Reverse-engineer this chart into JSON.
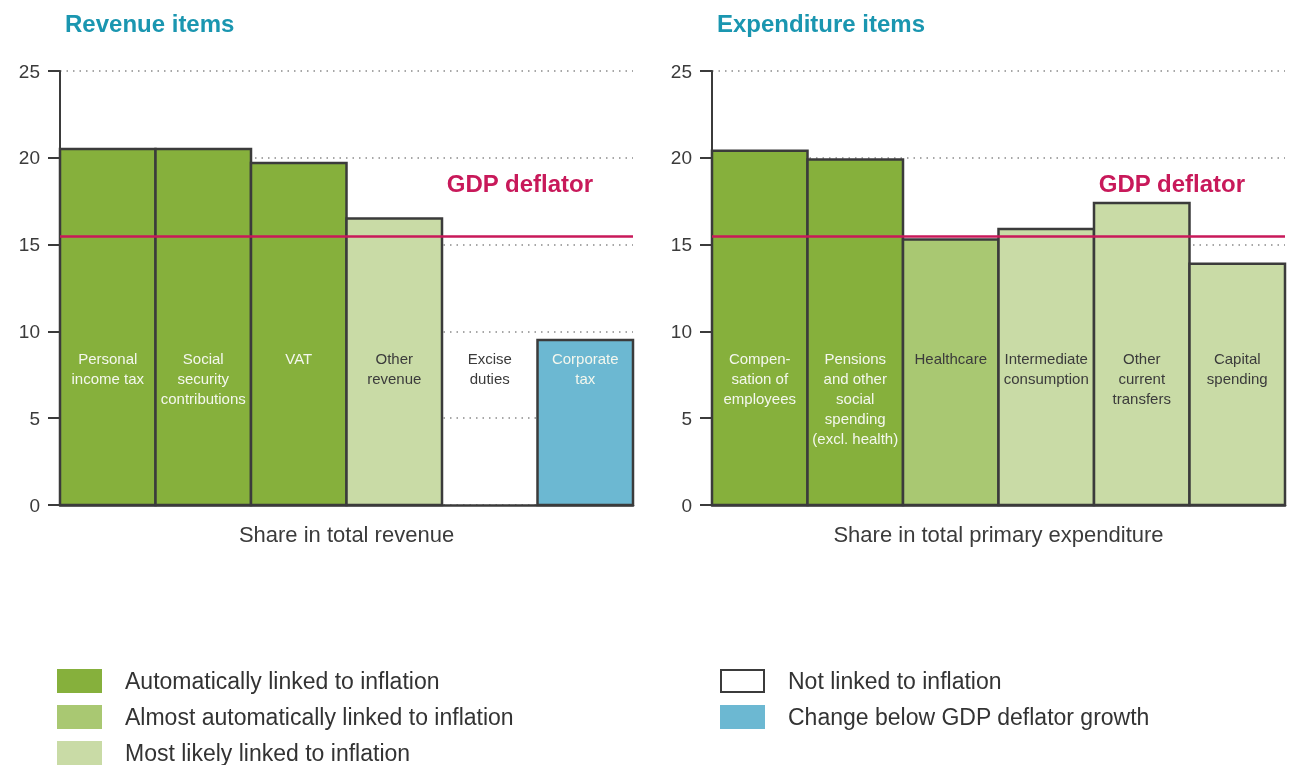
{
  "chart_data": [
    {
      "type": "bar",
      "title": "Revenue items",
      "xlabel": "Share in total revenue",
      "categories": [
        "Personal income tax",
        "Social security contributions",
        "VAT",
        "Other revenue",
        "Excise duties",
        "Corporate tax"
      ],
      "series": [
        {
          "name": "Automatically linked to inflation",
          "color": "#86b03c",
          "values": [
            20.5,
            20.5,
            19.7,
            null,
            null,
            null
          ]
        },
        {
          "name": "Most likely linked to inflation",
          "color": "#c9dba6",
          "values": [
            null,
            null,
            null,
            16.5,
            null,
            null
          ]
        },
        {
          "name": "Not linked to inflation",
          "color": "#ffffff",
          "values": [
            null,
            null,
            null,
            null,
            0,
            null
          ]
        },
        {
          "name": "Change below GDP deflator growth",
          "color": "#6cb8d2",
          "values": [
            null,
            null,
            null,
            null,
            null,
            9.5
          ]
        }
      ],
      "ylim": [
        0,
        25
      ],
      "yticks": [
        0,
        5,
        10,
        15,
        20,
        25
      ],
      "grid": "y",
      "legend": "bottom",
      "ref_lines": [
        {
          "axis": "y",
          "value": 15.5,
          "label": "GDP deflator",
          "color": "#c8195a"
        }
      ]
    },
    {
      "type": "bar",
      "title": "Expenditure items",
      "xlabel": "Share in total primary expenditure",
      "categories": [
        "Compen-sation of employees",
        "Pensions and other social spending (excl. health)",
        "Healthcare",
        "Intermediate consumption",
        "Other current transfers",
        "Capital spending"
      ],
      "series": [
        {
          "color": "#86b03c",
          "values": [
            20.4,
            19.9,
            null,
            null,
            null,
            null
          ]
        },
        {
          "name": "Almost automatically linked to inflation",
          "color": "#a9c872",
          "values": [
            null,
            null,
            15.3,
            null,
            null,
            null
          ]
        },
        {
          "color": "#c9dba6",
          "values": [
            null,
            null,
            null,
            15.9,
            17.4,
            13.9
          ]
        }
      ],
      "ylim": [
        0,
        25
      ],
      "yticks": [
        0,
        5,
        10,
        15,
        20,
        25
      ],
      "grid": "y",
      "legend": "bottom",
      "ref_lines": [
        {
          "axis": "y",
          "value": 15.5,
          "label": "GDP deflator",
          "color": "#c8195a"
        }
      ]
    }
  ]
}
